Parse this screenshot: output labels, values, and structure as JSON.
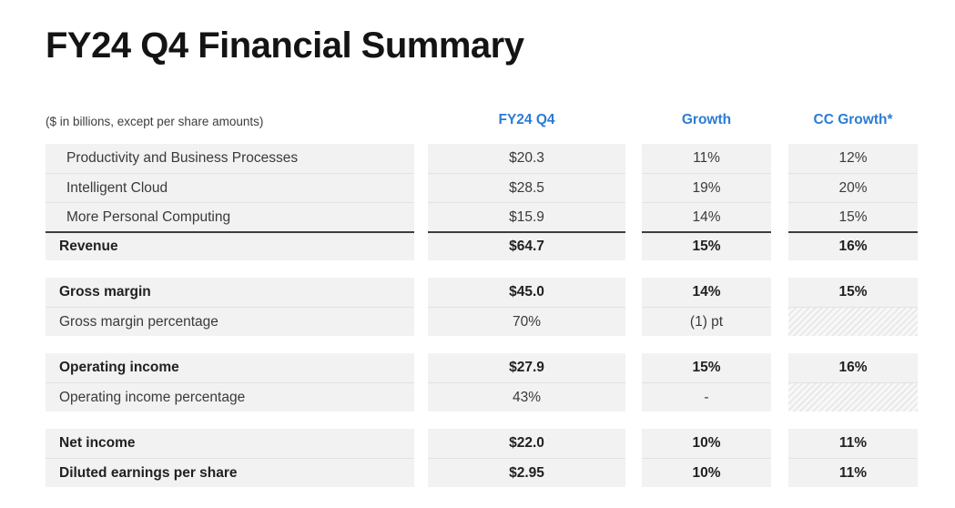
{
  "page": {
    "title": "FY24 Q4 Financial Summary",
    "subtitle": "($ in billions, except per share amounts)"
  },
  "colors": {
    "accent_blue": "#2B7CD3",
    "row_band": "#F2F2F2",
    "separator_line": "#E2E2E2",
    "total_rule": "#3D3D3D",
    "title_text": "#141414",
    "body_text": "#3A3A3A"
  },
  "table": {
    "column_headers": [
      "FY24 Q4",
      "Growth",
      "CC Growth*"
    ],
    "groups": [
      {
        "rows": [
          {
            "label": "Productivity and Business Processes",
            "indent": true,
            "bold": false,
            "total": false,
            "values": [
              "$20.3",
              "11%",
              "12%"
            ]
          },
          {
            "label": "Intelligent Cloud",
            "indent": true,
            "bold": false,
            "total": false,
            "values": [
              "$28.5",
              "19%",
              "20%"
            ]
          },
          {
            "label": "More Personal Computing",
            "indent": true,
            "bold": false,
            "total": false,
            "values": [
              "$15.9",
              "14%",
              "15%"
            ]
          },
          {
            "label": "Revenue",
            "indent": false,
            "bold": true,
            "total": true,
            "values": [
              "$64.7",
              "15%",
              "16%"
            ]
          }
        ]
      },
      {
        "rows": [
          {
            "label": "Gross margin",
            "indent": false,
            "bold": true,
            "total": false,
            "values": [
              "$45.0",
              "14%",
              "15%"
            ]
          },
          {
            "label": "Gross margin percentage",
            "indent": false,
            "bold": false,
            "total": false,
            "values": [
              "70%",
              "(1) pt",
              null
            ],
            "hatched_cols": [
              2
            ]
          }
        ]
      },
      {
        "rows": [
          {
            "label": "Operating income",
            "indent": false,
            "bold": true,
            "total": false,
            "values": [
              "$27.9",
              "15%",
              "16%"
            ]
          },
          {
            "label": "Operating income percentage",
            "indent": false,
            "bold": false,
            "total": false,
            "values": [
              "43%",
              "-",
              null
            ],
            "hatched_cols": [
              2
            ]
          }
        ]
      },
      {
        "rows": [
          {
            "label": "Net income",
            "indent": false,
            "bold": true,
            "total": false,
            "values": [
              "$22.0",
              "10%",
              "11%"
            ]
          },
          {
            "label": "Diluted earnings per share",
            "indent": false,
            "bold": true,
            "total": false,
            "values": [
              "$2.95",
              "10%",
              "11%"
            ]
          }
        ]
      }
    ]
  },
  "chart_data": {
    "type": "table",
    "title": "FY24 Q4 Financial Summary",
    "subtitle": "($ in billions, except per share amounts)",
    "columns": [
      "",
      "FY24 Q4",
      "Growth",
      "CC Growth*"
    ],
    "rows": [
      [
        "Productivity and Business Processes",
        "$20.3",
        "11%",
        "12%"
      ],
      [
        "Intelligent Cloud",
        "$28.5",
        "19%",
        "20%"
      ],
      [
        "More Personal Computing",
        "$15.9",
        "14%",
        "15%"
      ],
      [
        "Revenue",
        "$64.7",
        "15%",
        "16%"
      ],
      [
        "Gross margin",
        "$45.0",
        "14%",
        "15%"
      ],
      [
        "Gross margin percentage",
        "70%",
        "(1) pt",
        null
      ],
      [
        "Operating income",
        "$27.9",
        "15%",
        "16%"
      ],
      [
        "Operating income percentage",
        "43%",
        "-",
        null
      ],
      [
        "Net income",
        "$22.0",
        "10%",
        "11%"
      ],
      [
        "Diluted earnings per share",
        "$2.95",
        "10%",
        "11%"
      ]
    ]
  }
}
